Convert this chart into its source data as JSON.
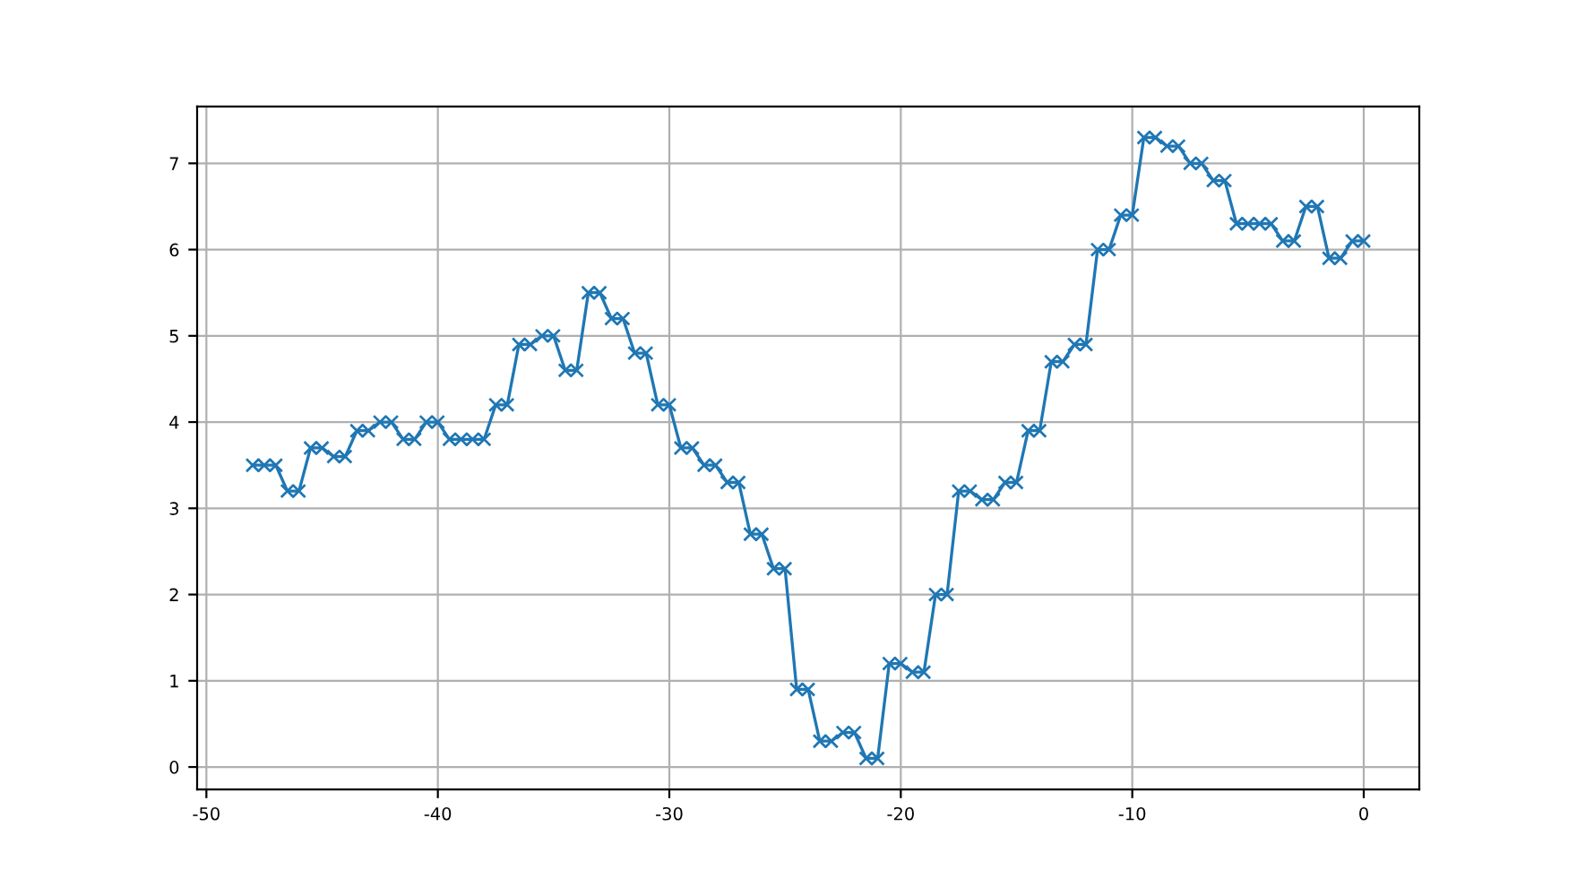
{
  "chart_data": {
    "type": "line",
    "x": [
      -48,
      -47.5,
      -47,
      -46.5,
      -46,
      -45.5,
      -45,
      -44.5,
      -44,
      -43.5,
      -43,
      -42.5,
      -42,
      -41.5,
      -41,
      -40.5,
      -40,
      -39.5,
      -39,
      -38.5,
      -38,
      -37.5,
      -37,
      -36.5,
      -36,
      -35.5,
      -35,
      -34.5,
      -34,
      -33.5,
      -33,
      -32.5,
      -32,
      -31.5,
      -31,
      -30.5,
      -30,
      -29.5,
      -29,
      -28.5,
      -28,
      -27.5,
      -27,
      -26.5,
      -26,
      -25.5,
      -25,
      -24.5,
      -24,
      -23.5,
      -23,
      -22.5,
      -22,
      -21.5,
      -21,
      -20.5,
      -20,
      -19.5,
      -19,
      -18.5,
      -18,
      -17.5,
      -17,
      -16.5,
      -16,
      -15.5,
      -15,
      -14.5,
      -14,
      -13.5,
      -13,
      -12.5,
      -12,
      -11.5,
      -11,
      -10.5,
      -10,
      -9.5,
      -9,
      -8.5,
      -8,
      -7.5,
      -7,
      -6.5,
      -6,
      -5.5,
      -5,
      -4.5,
      -4,
      -3.5,
      -3,
      -2.5,
      -2,
      -1.5,
      -1,
      -0.5,
      0
    ],
    "series": [
      {
        "color": "#1f77b4",
        "values": [
          3.5,
          3.5,
          3.5,
          3.2,
          3.2,
          3.7,
          3.7,
          3.6,
          3.6,
          3.9,
          3.9,
          4.0,
          4.0,
          3.8,
          3.8,
          4.0,
          4.0,
          3.8,
          3.8,
          3.8,
          3.8,
          4.2,
          4.2,
          4.9,
          4.9,
          5.0,
          5.0,
          4.6,
          4.6,
          5.5,
          5.5,
          5.2,
          5.2,
          4.8,
          4.8,
          4.2,
          4.2,
          3.7,
          3.7,
          3.5,
          3.5,
          3.3,
          3.3,
          2.7,
          2.7,
          2.3,
          2.3,
          0.9,
          0.9,
          0.3,
          0.3,
          0.4,
          0.4,
          0.1,
          0.1,
          1.2,
          1.2,
          1.1,
          1.1,
          2.0,
          2.0,
          3.2,
          3.2,
          3.1,
          3.1,
          3.3,
          3.3,
          3.9,
          3.9,
          4.7,
          4.7,
          4.9,
          4.9,
          6.0,
          6.0,
          6.4,
          6.4,
          7.3,
          7.3,
          7.2,
          7.2,
          7.0,
          7.0,
          6.8,
          6.8,
          6.3,
          6.3,
          6.3,
          6.3,
          6.1,
          6.1,
          6.5,
          6.5,
          5.9,
          5.9,
          6.1,
          6.1
        ]
      }
    ],
    "xlim": [
      -50.4,
      2.4
    ],
    "ylim": [
      -0.26,
      7.66
    ],
    "xticks": [
      -50,
      -40,
      -30,
      -20,
      -10,
      0
    ],
    "yticks": [
      0,
      1,
      2,
      3,
      4,
      5,
      6,
      7
    ],
    "grid": true,
    "marker": "cross",
    "line_style": "solid"
  }
}
